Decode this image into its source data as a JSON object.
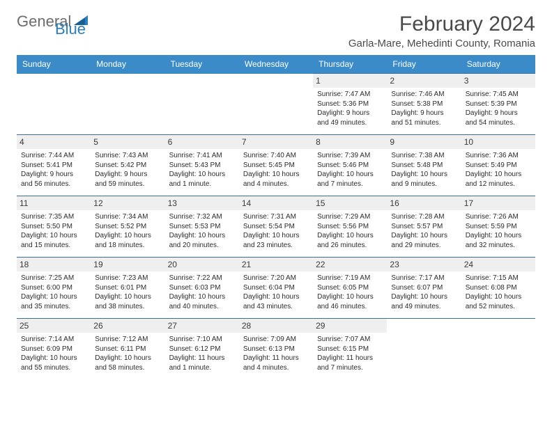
{
  "logo": {
    "prefix": "General",
    "suffix": "Blue"
  },
  "title": "February 2024",
  "location": "Garla-Mare, Mehedinti County, Romania",
  "header_bg": "#3b8bc9",
  "header_text_color": "#ffffff",
  "day_num_bg": "#efefef",
  "rule_color": "#3b6fa0",
  "weekdays": [
    "Sunday",
    "Monday",
    "Tuesday",
    "Wednesday",
    "Thursday",
    "Friday",
    "Saturday"
  ],
  "weeks": [
    [
      null,
      null,
      null,
      null,
      {
        "n": "1",
        "sr": "Sunrise: 7:47 AM",
        "ss": "Sunset: 5:36 PM",
        "dl1": "Daylight: 9 hours",
        "dl2": "and 49 minutes."
      },
      {
        "n": "2",
        "sr": "Sunrise: 7:46 AM",
        "ss": "Sunset: 5:38 PM",
        "dl1": "Daylight: 9 hours",
        "dl2": "and 51 minutes."
      },
      {
        "n": "3",
        "sr": "Sunrise: 7:45 AM",
        "ss": "Sunset: 5:39 PM",
        "dl1": "Daylight: 9 hours",
        "dl2": "and 54 minutes."
      }
    ],
    [
      {
        "n": "4",
        "sr": "Sunrise: 7:44 AM",
        "ss": "Sunset: 5:41 PM",
        "dl1": "Daylight: 9 hours",
        "dl2": "and 56 minutes."
      },
      {
        "n": "5",
        "sr": "Sunrise: 7:43 AM",
        "ss": "Sunset: 5:42 PM",
        "dl1": "Daylight: 9 hours",
        "dl2": "and 59 minutes."
      },
      {
        "n": "6",
        "sr": "Sunrise: 7:41 AM",
        "ss": "Sunset: 5:43 PM",
        "dl1": "Daylight: 10 hours",
        "dl2": "and 1 minute."
      },
      {
        "n": "7",
        "sr": "Sunrise: 7:40 AM",
        "ss": "Sunset: 5:45 PM",
        "dl1": "Daylight: 10 hours",
        "dl2": "and 4 minutes."
      },
      {
        "n": "8",
        "sr": "Sunrise: 7:39 AM",
        "ss": "Sunset: 5:46 PM",
        "dl1": "Daylight: 10 hours",
        "dl2": "and 7 minutes."
      },
      {
        "n": "9",
        "sr": "Sunrise: 7:38 AM",
        "ss": "Sunset: 5:48 PM",
        "dl1": "Daylight: 10 hours",
        "dl2": "and 9 minutes."
      },
      {
        "n": "10",
        "sr": "Sunrise: 7:36 AM",
        "ss": "Sunset: 5:49 PM",
        "dl1": "Daylight: 10 hours",
        "dl2": "and 12 minutes."
      }
    ],
    [
      {
        "n": "11",
        "sr": "Sunrise: 7:35 AM",
        "ss": "Sunset: 5:50 PM",
        "dl1": "Daylight: 10 hours",
        "dl2": "and 15 minutes."
      },
      {
        "n": "12",
        "sr": "Sunrise: 7:34 AM",
        "ss": "Sunset: 5:52 PM",
        "dl1": "Daylight: 10 hours",
        "dl2": "and 18 minutes."
      },
      {
        "n": "13",
        "sr": "Sunrise: 7:32 AM",
        "ss": "Sunset: 5:53 PM",
        "dl1": "Daylight: 10 hours",
        "dl2": "and 20 minutes."
      },
      {
        "n": "14",
        "sr": "Sunrise: 7:31 AM",
        "ss": "Sunset: 5:54 PM",
        "dl1": "Daylight: 10 hours",
        "dl2": "and 23 minutes."
      },
      {
        "n": "15",
        "sr": "Sunrise: 7:29 AM",
        "ss": "Sunset: 5:56 PM",
        "dl1": "Daylight: 10 hours",
        "dl2": "and 26 minutes."
      },
      {
        "n": "16",
        "sr": "Sunrise: 7:28 AM",
        "ss": "Sunset: 5:57 PM",
        "dl1": "Daylight: 10 hours",
        "dl2": "and 29 minutes."
      },
      {
        "n": "17",
        "sr": "Sunrise: 7:26 AM",
        "ss": "Sunset: 5:59 PM",
        "dl1": "Daylight: 10 hours",
        "dl2": "and 32 minutes."
      }
    ],
    [
      {
        "n": "18",
        "sr": "Sunrise: 7:25 AM",
        "ss": "Sunset: 6:00 PM",
        "dl1": "Daylight: 10 hours",
        "dl2": "and 35 minutes."
      },
      {
        "n": "19",
        "sr": "Sunrise: 7:23 AM",
        "ss": "Sunset: 6:01 PM",
        "dl1": "Daylight: 10 hours",
        "dl2": "and 38 minutes."
      },
      {
        "n": "20",
        "sr": "Sunrise: 7:22 AM",
        "ss": "Sunset: 6:03 PM",
        "dl1": "Daylight: 10 hours",
        "dl2": "and 40 minutes."
      },
      {
        "n": "21",
        "sr": "Sunrise: 7:20 AM",
        "ss": "Sunset: 6:04 PM",
        "dl1": "Daylight: 10 hours",
        "dl2": "and 43 minutes."
      },
      {
        "n": "22",
        "sr": "Sunrise: 7:19 AM",
        "ss": "Sunset: 6:05 PM",
        "dl1": "Daylight: 10 hours",
        "dl2": "and 46 minutes."
      },
      {
        "n": "23",
        "sr": "Sunrise: 7:17 AM",
        "ss": "Sunset: 6:07 PM",
        "dl1": "Daylight: 10 hours",
        "dl2": "and 49 minutes."
      },
      {
        "n": "24",
        "sr": "Sunrise: 7:15 AM",
        "ss": "Sunset: 6:08 PM",
        "dl1": "Daylight: 10 hours",
        "dl2": "and 52 minutes."
      }
    ],
    [
      {
        "n": "25",
        "sr": "Sunrise: 7:14 AM",
        "ss": "Sunset: 6:09 PM",
        "dl1": "Daylight: 10 hours",
        "dl2": "and 55 minutes."
      },
      {
        "n": "26",
        "sr": "Sunrise: 7:12 AM",
        "ss": "Sunset: 6:11 PM",
        "dl1": "Daylight: 10 hours",
        "dl2": "and 58 minutes."
      },
      {
        "n": "27",
        "sr": "Sunrise: 7:10 AM",
        "ss": "Sunset: 6:12 PM",
        "dl1": "Daylight: 11 hours",
        "dl2": "and 1 minute."
      },
      {
        "n": "28",
        "sr": "Sunrise: 7:09 AM",
        "ss": "Sunset: 6:13 PM",
        "dl1": "Daylight: 11 hours",
        "dl2": "and 4 minutes."
      },
      {
        "n": "29",
        "sr": "Sunrise: 7:07 AM",
        "ss": "Sunset: 6:15 PM",
        "dl1": "Daylight: 11 hours",
        "dl2": "and 7 minutes."
      },
      null,
      null
    ]
  ]
}
